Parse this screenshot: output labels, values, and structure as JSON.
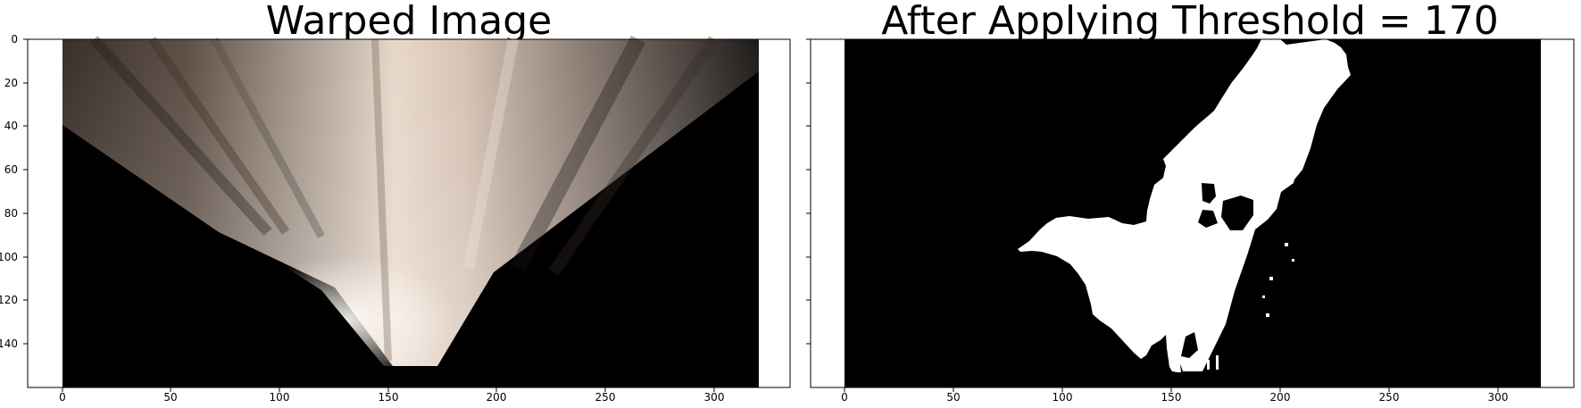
{
  "figure": {
    "panels": [
      {
        "title": "Warped Image",
        "xticks": [
          "0",
          "50",
          "100",
          "150",
          "200",
          "250",
          "300"
        ],
        "yticks": [
          "0",
          "20",
          "40",
          "60",
          "80",
          "100",
          "120",
          "140"
        ],
        "show_yticks": true
      },
      {
        "title": "After Applying Threshold = 170",
        "xticks": [
          "0",
          "50",
          "100",
          "150",
          "200",
          "250",
          "300"
        ],
        "yticks": [],
        "show_yticks": false
      }
    ],
    "image": {
      "width": 320,
      "height": 160
    },
    "colors": {
      "background": "#ffffff",
      "axis": "#000000",
      "warped_dark": "#000000",
      "warped_light": "#f7f1ea",
      "warped_brown": "#6b5c52",
      "threshold_white": "#ffffff",
      "threshold_black": "#000000"
    }
  }
}
